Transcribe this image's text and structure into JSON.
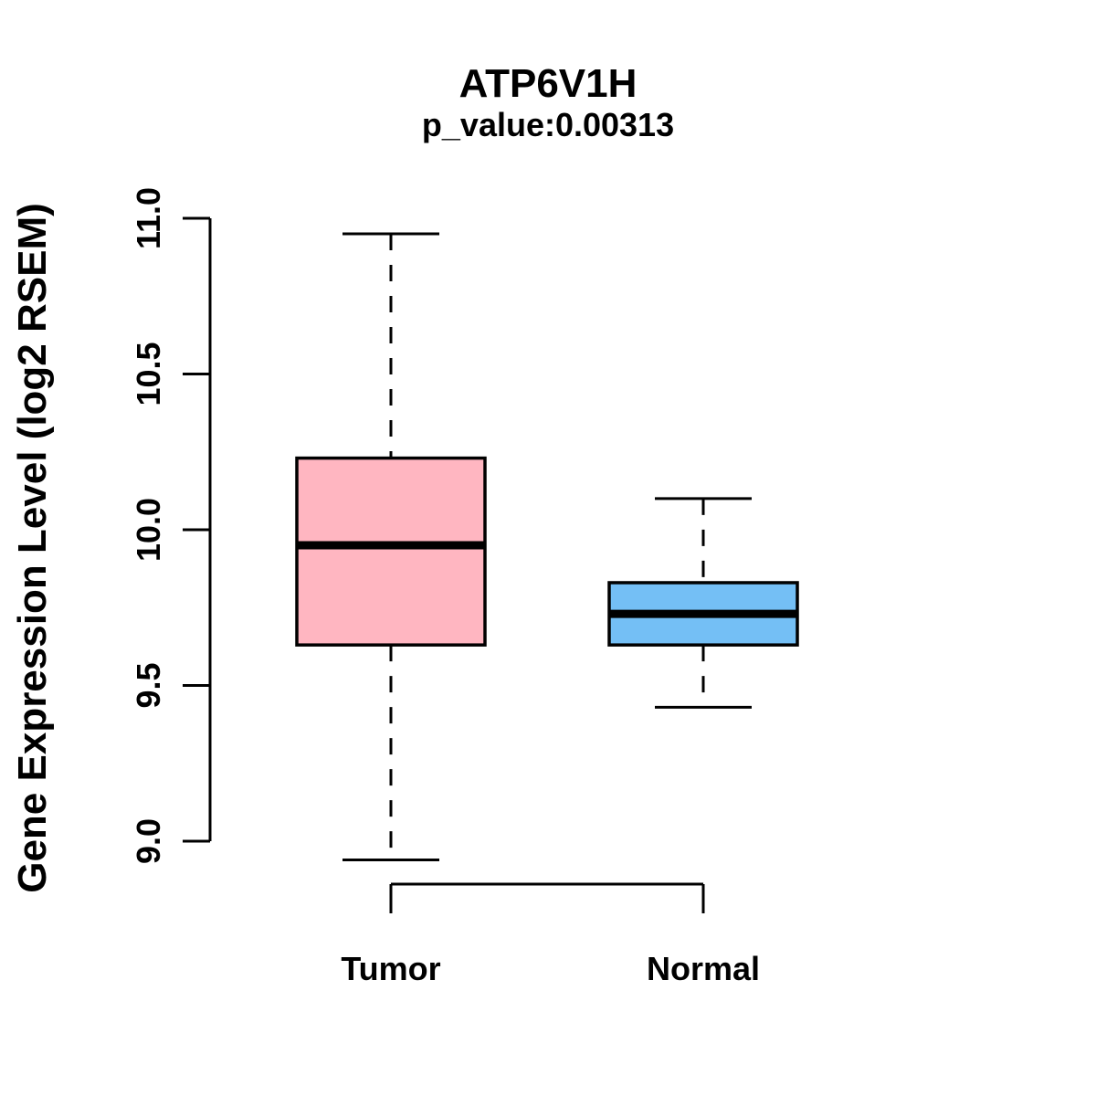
{
  "figure": {
    "background": "#FFFFFF",
    "foreground": "#000000"
  },
  "chart_data": {
    "type": "boxplot",
    "title": "ATP6V1H",
    "subtitle": "p_value:0.00313",
    "xlabel": "",
    "ylabel": "Gene Expression Level (log2 RSEM)",
    "categories": [
      "Tumor",
      "Normal"
    ],
    "series": [
      {
        "name": "Tumor",
        "whisker_low": 8.94,
        "q1": 9.63,
        "median": 9.95,
        "q3": 10.23,
        "whisker_high": 10.95,
        "fill": "#FFB6C1"
      },
      {
        "name": "Normal",
        "whisker_low": 9.43,
        "q1": 9.63,
        "median": 9.73,
        "q3": 9.83,
        "whisker_high": 10.1,
        "fill": "#74BFF5"
      }
    ],
    "yticks": [
      9.0,
      9.5,
      10.0,
      10.5,
      11.0
    ],
    "ylim": [
      9.0,
      11.0
    ],
    "grid": false,
    "legend_position": "none",
    "whisker_style": "dashed",
    "box_border_color": "#000000",
    "median_color": "#000000"
  }
}
